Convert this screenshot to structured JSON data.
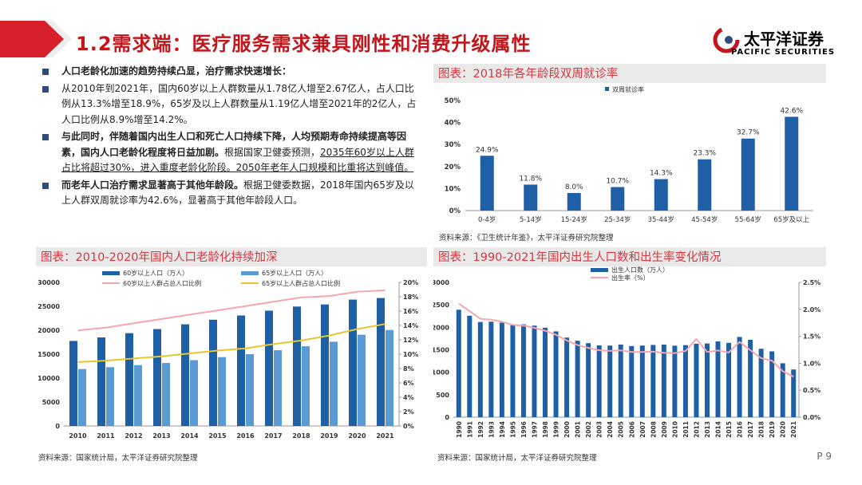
{
  "header": {
    "title": "1.2需求端：医疗服务需求兼具刚性和消费升级属性",
    "logo_name": "太平洋证券",
    "logo_sub": "PACIFIC SECURITIES"
  },
  "bullets": [
    {
      "text": "人口老龄化加速的趋势持续凸显，治疗需求快速增长："
    },
    {
      "text": "从2010年到2021年，国内60岁以上人群数量从1.78亿人增至2.67亿人，占人口比例从13.3%增至18.9%，65岁及以上人群数量从1.19亿人增至2021年的2亿人，占人口比例从8.9%增至14.2%。"
    },
    {
      "bold": "与此同时，伴随着国内出生人口和死亡人口持续下降，人均预期寿命持续提高等因素，国内人口老龄化程度将日益加剧。",
      "text": "根据国家卫健委预测，",
      "underline": "2035年60岁以上人群占比将超过30%，进入重度老龄化阶段。2050年老年人口规模和比重将达到峰值。"
    },
    {
      "bold": "而老年人口治疗需求显著高于其他年龄段。",
      "text": "根据卫健委数据，2018年国内65岁及以上人群双周就诊率为42.6%，显著高于其他年龄段人口。"
    }
  ],
  "page_number": "P 9",
  "chart_data": [
    {
      "type": "bar",
      "title": "图表：2018年各年龄段双周就诊率",
      "legend": [
        "双周就诊率"
      ],
      "categories": [
        "0-4岁",
        "5-14岁",
        "15-24岁",
        "25-34岁",
        "35-44岁",
        "45-54岁",
        "55-64岁",
        "65岁及以上"
      ],
      "values": [
        24.9,
        11.8,
        8.0,
        10.7,
        14.3,
        23.3,
        32.7,
        42.6
      ],
      "data_labels": [
        "24.9%",
        "11.8%",
        "8.0%",
        "10.7%",
        "14.3%",
        "23.3%",
        "32.7%",
        "42.6%"
      ],
      "ylim": [
        0,
        50
      ],
      "yticks": [
        "0%",
        "10%",
        "20%",
        "30%",
        "40%",
        "50%"
      ],
      "source": "资料来源：《卫生统计年鉴》，太平洋证券研究院整理",
      "color": "#1f5fa6"
    },
    {
      "type": "bar+line",
      "title": "图表：2010-2020年国内人口老龄化持续加深",
      "categories": [
        "2010",
        "2011",
        "2012",
        "2013",
        "2014",
        "2015",
        "2016",
        "2017",
        "2018",
        "2019",
        "2020",
        "2021"
      ],
      "series": [
        {
          "name": "60岁以上人口（万人）",
          "type": "bar",
          "axis": "left",
          "color": "#1f5fa6",
          "values": [
            17765,
            18499,
            19390,
            20243,
            21242,
            22200,
            23086,
            24090,
            24949,
            25388,
            26402,
            26736
          ]
        },
        {
          "name": "65岁以上人口（万人）",
          "type": "bar",
          "axis": "left",
          "color": "#5b9bd5",
          "values": [
            11894,
            12288,
            12714,
            13161,
            13755,
            14386,
            15003,
            15831,
            16658,
            17603,
            19064,
            20056
          ]
        },
        {
          "name": "60岁以上人群占总人口比例",
          "type": "line",
          "axis": "right",
          "color": "#f4a7b0",
          "values": [
            13.3,
            13.7,
            14.3,
            14.9,
            15.5,
            16.1,
            16.7,
            17.3,
            17.9,
            18.1,
            18.7,
            18.9
          ]
        },
        {
          "name": "65岁以上人群占总人口比例",
          "type": "line",
          "axis": "right",
          "color": "#e8c62e",
          "values": [
            8.9,
            9.1,
            9.4,
            9.7,
            10.1,
            10.5,
            10.8,
            11.4,
            11.9,
            12.6,
            13.5,
            14.2
          ]
        }
      ],
      "ylim_left": [
        0,
        30000
      ],
      "yticks_left": [
        "0",
        "5000",
        "10000",
        "15000",
        "20000",
        "25000",
        "30000"
      ],
      "ylim_right": [
        0,
        20
      ],
      "yticks_right": [
        "0%",
        "2%",
        "4%",
        "6%",
        "8%",
        "10%",
        "12%",
        "14%",
        "16%",
        "18%",
        "20%"
      ],
      "source": "资料来源：国家统计局，太平洋证券研究院整理"
    },
    {
      "type": "bar+line",
      "title": "图表：1990-2021年国内出生人口数和出生率变化情况",
      "categories": [
        "1990",
        "1991",
        "1992",
        "1993",
        "1994",
        "1995",
        "1996",
        "1997",
        "1998",
        "1999",
        "2000",
        "2001",
        "2002",
        "2003",
        "2004",
        "2005",
        "2006",
        "2007",
        "2008",
        "2009",
        "2010",
        "2011",
        "2012",
        "2013",
        "2014",
        "2015",
        "2016",
        "2017",
        "2018",
        "2019",
        "2020",
        "2021"
      ],
      "series": [
        {
          "name": "出生人口数（万人）",
          "type": "bar",
          "axis": "left",
          "color": "#1f5fa6",
          "values": [
            2391,
            2258,
            2119,
            2126,
            2104,
            2063,
            2067,
            2038,
            1991,
            1909,
            1771,
            1702,
            1647,
            1599,
            1593,
            1617,
            1584,
            1594,
            1608,
            1615,
            1592,
            1604,
            1635,
            1640,
            1687,
            1655,
            1786,
            1723,
            1523,
            1465,
            1200,
            1062
          ]
        },
        {
          "name": "出生率（%）",
          "type": "line",
          "axis": "right",
          "color": "#f4a7b0",
          "values": [
            2.106,
            1.968,
            1.824,
            1.809,
            1.77,
            1.712,
            1.698,
            1.657,
            1.603,
            1.528,
            1.423,
            1.338,
            1.286,
            1.241,
            1.229,
            1.24,
            1.209,
            1.21,
            1.214,
            1.195,
            1.19,
            1.227,
            1.45,
            1.208,
            1.237,
            1.199,
            1.395,
            1.243,
            1.094,
            1.048,
            0.852,
            0.752
          ]
        }
      ],
      "ylim_left": [
        0,
        3000
      ],
      "yticks_left": [
        "0",
        "500",
        "1000",
        "1500",
        "2000",
        "2500",
        "3000"
      ],
      "ylim_right": [
        0,
        2.5
      ],
      "yticks_right": [
        "0.0%",
        "0.5%",
        "1.0%",
        "1.5%",
        "2.0%",
        "2.5%"
      ],
      "source": "资料来源：国家统计局，太平洋证券研究院整理"
    }
  ]
}
